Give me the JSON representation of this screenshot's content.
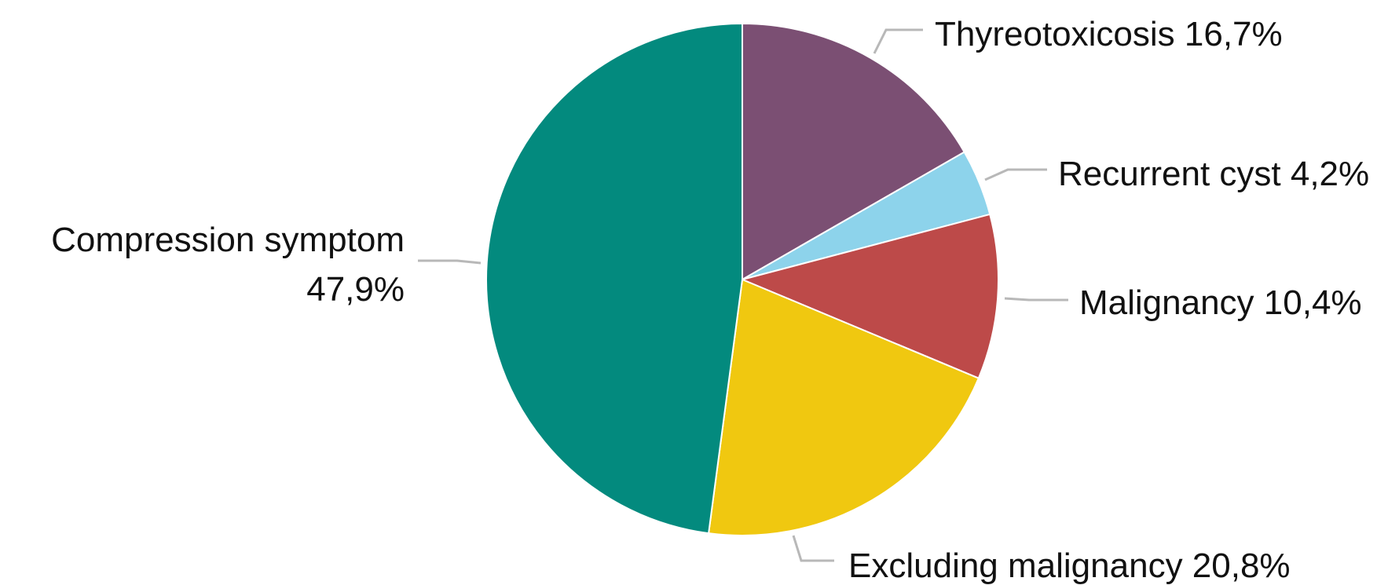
{
  "chart_data": {
    "type": "pie",
    "slices": [
      {
        "label": "Thyreotoxicosis",
        "display": "Thyreotoxicosis 16,7%",
        "value": 16.7,
        "color": "#7b4f73"
      },
      {
        "label": "Recurrent cyst",
        "display": "Recurrent cyst 4,2%",
        "value": 4.2,
        "color": "#8dd3eb"
      },
      {
        "label": "Malignancy",
        "display": "Malignancy 10,4%",
        "value": 10.4,
        "color": "#bd4a49"
      },
      {
        "label": "Excluding malignancy",
        "display": "Excluding malignancy 20,8%",
        "value": 20.8,
        "color": "#f0c810"
      },
      {
        "label": "Compression symptom",
        "display_lines": [
          "Compression symptom",
          "47,9%"
        ],
        "value": 47.9,
        "color": "#038a7e"
      }
    ],
    "start_angle": "12 o'clock",
    "direction": "clockwise"
  }
}
